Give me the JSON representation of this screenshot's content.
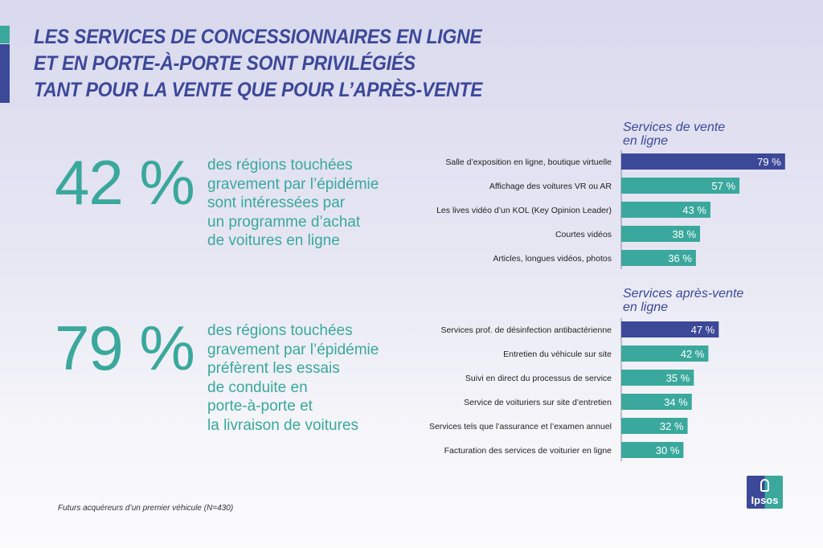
{
  "title": [
    "LES SERVICES DE CONCESSIONNAIRES EN LIGNE",
    "ET EN PORTE-À-PORTE SONT PRIVILÉGIÉS",
    "TANT POUR LA VENTE QUE POUR L’APRÈS-VENTE"
  ],
  "stats": [
    {
      "value": "42 %",
      "text": [
        "des régions touchées",
        "gravement par l’épidémie",
        "sont intéressées par",
        "un programme d’achat",
        "de voitures en ligne"
      ]
    },
    {
      "value": "79 %",
      "text": [
        "des régions touchées",
        "gravement par l’épidémie",
        "préfèrent les essais",
        "de conduite en",
        "porte-à-porte et",
        "la livraison de voitures"
      ]
    }
  ],
  "chart_data": [
    {
      "type": "bar",
      "orientation": "horizontal",
      "title": "Services de vente en ligne",
      "unit": "%",
      "xlim": [
        0,
        100
      ],
      "categories": [
        "Salle d’exposition en ligne, boutique virtuelle",
        "Affichage des voitures VR ou AR",
        "Les lives vidéo d’un KOL (Key Opinion Leader)",
        "Courtes vidéos",
        "Articles, longues vidéos, photos"
      ],
      "values": [
        79,
        57,
        43,
        38,
        36
      ],
      "labels": [
        "79 %",
        "57 %",
        "43 %",
        "38 %",
        "36 %"
      ],
      "highlight": 0
    },
    {
      "type": "bar",
      "orientation": "horizontal",
      "title": "Services après-vente en ligne",
      "unit": "%",
      "xlim": [
        0,
        100
      ],
      "categories": [
        "Services prof. de désinfection antibactérienne",
        "Entretien du véhicule sur site",
        "Suivi en direct du processus de service",
        "Service de voituriers sur site d’entretien",
        "Services tels que l’assurance et l’examen annuel",
        "Facturation des services de voiturier en ligne"
      ],
      "values": [
        47,
        42,
        35,
        34,
        32,
        30
      ],
      "labels": [
        "47 %",
        "42 %",
        "35 %",
        "34 %",
        "32 %",
        "30 %"
      ],
      "highlight": 0
    }
  ],
  "section_titles": [
    [
      "Services de vente",
      "en ligne"
    ],
    [
      "Services après-vente",
      "en ligne"
    ]
  ],
  "colors": {
    "highlight": "#3c4898",
    "bar": "#3aa89c"
  },
  "footnote": "Futurs acquéreurs d’un premier véhicule (N=430)",
  "logo": "Ipsos"
}
